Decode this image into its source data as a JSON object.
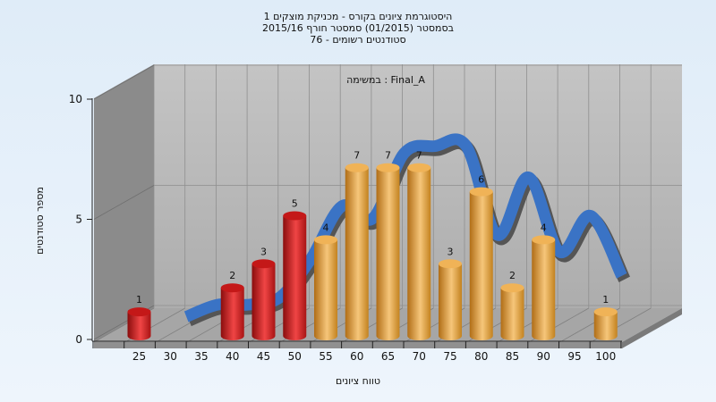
{
  "chart_data": {
    "type": "bar",
    "title_lines": [
      "היסטוגרמת ציונים בקורס - מכניקת מוצקים 1",
      "בסמסטר  (01/2015)  סמסטר חורף 2015/16",
      "סטודנטים רשומים - 76"
    ],
    "subtitle": "במשימה : Final_A",
    "xlabel": "טווח ציונים",
    "ylabel": "מספר סטודנטים",
    "x_ticks": [
      "25",
      "30",
      "35",
      "40",
      "45",
      "50",
      "55",
      "60",
      "65",
      "70",
      "75",
      "80",
      "85",
      "90",
      "95",
      "100"
    ],
    "y_ticks": [
      "0",
      "5",
      "10"
    ],
    "ylim": [
      0,
      10
    ],
    "bars": [
      {
        "x": 25,
        "value": 1,
        "label": "1",
        "group": "fail"
      },
      {
        "x": 40,
        "value": 2,
        "label": "2",
        "group": "fail"
      },
      {
        "x": 45,
        "value": 3,
        "label": "3",
        "group": "fail"
      },
      {
        "x": 50,
        "value": 5,
        "label": "5",
        "group": "fail"
      },
      {
        "x": 55,
        "value": 4,
        "label": "4",
        "group": "pass"
      },
      {
        "x": 60,
        "value": 7,
        "label": "7",
        "group": "pass"
      },
      {
        "x": 65,
        "value": 7,
        "label": "7",
        "group": "pass"
      },
      {
        "x": 70,
        "value": 7,
        "label": "7",
        "group": "pass"
      },
      {
        "x": 75,
        "value": 3,
        "label": "3",
        "group": "pass"
      },
      {
        "x": 80,
        "value": 6,
        "label": "6",
        "group": "pass"
      },
      {
        "x": 85,
        "value": 2,
        "label": "2",
        "group": "pass"
      },
      {
        "x": 90,
        "value": 4,
        "label": "4",
        "group": "pass"
      },
      {
        "x": 100,
        "value": 1,
        "label": "1",
        "group": "pass"
      }
    ],
    "trend": [
      {
        "x": 30,
        "y": 0.5
      },
      {
        "x": 35,
        "y": 1.0
      },
      {
        "x": 40,
        "y": 1.0
      },
      {
        "x": 45,
        "y": 1.3
      },
      {
        "x": 50,
        "y": 2.9
      },
      {
        "x": 55,
        "y": 5.1
      },
      {
        "x": 60,
        "y": 4.6
      },
      {
        "x": 65,
        "y": 7.3
      },
      {
        "x": 70,
        "y": 7.6
      },
      {
        "x": 75,
        "y": 7.6
      },
      {
        "x": 80,
        "y": 3.9
      },
      {
        "x": 85,
        "y": 6.3
      },
      {
        "x": 90,
        "y": 3.2
      },
      {
        "x": 95,
        "y": 4.7
      },
      {
        "x": 100,
        "y": 2.2
      }
    ],
    "colors": {
      "fail": "#dd1f1f",
      "pass": "#e7a43c",
      "trend": "#3a73c5",
      "trend_shadow": "#555555",
      "back_wall": "#b9b9b9",
      "side_wall": "#888888",
      "floor": "#a9a9a9"
    },
    "grid": true
  }
}
